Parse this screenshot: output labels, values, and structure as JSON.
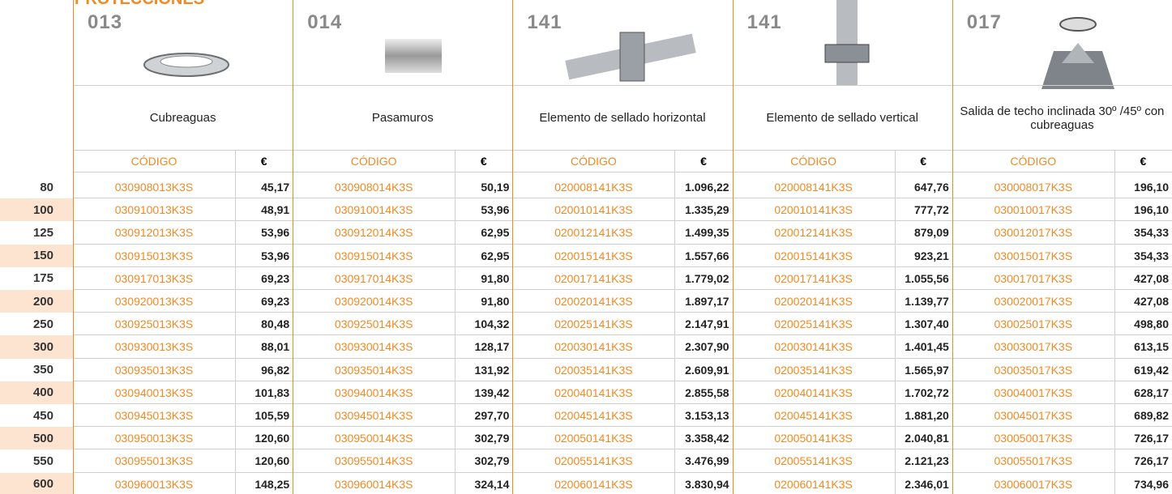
{
  "header": {
    "title": "PROTECCIONES"
  },
  "table": {
    "code_header": "CÓDIGO",
    "price_header": "€",
    "diameters": [
      "80",
      "100",
      "125",
      "150",
      "175",
      "200",
      "250",
      "300",
      "350",
      "400",
      "450",
      "500",
      "550",
      "600"
    ],
    "products": [
      {
        "number": "013",
        "name": "Cubreaguas",
        "codes": [
          "030908013K3S",
          "030910013K3S",
          "030912013K3S",
          "030915013K3S",
          "030917013K3S",
          "030920013K3S",
          "030925013K3S",
          "030930013K3S",
          "030935013K3S",
          "030940013K3S",
          "030945013K3S",
          "030950013K3S",
          "030955013K3S",
          "030960013K3S"
        ],
        "prices": [
          "45,17",
          "48,91",
          "53,96",
          "53,96",
          "69,23",
          "69,23",
          "80,48",
          "88,01",
          "96,82",
          "101,83",
          "105,59",
          "120,60",
          "120,60",
          "148,25"
        ]
      },
      {
        "number": "014",
        "name": "Pasamuros",
        "codes": [
          "030908014K3S",
          "030910014K3S",
          "030912014K3S",
          "030915014K3S",
          "030917014K3S",
          "030920014K3S",
          "030925014K3S",
          "030930014K3S",
          "030935014K3S",
          "030940014K3S",
          "030945014K3S",
          "030950014K3S",
          "030955014K3S",
          "030960014K3S"
        ],
        "prices": [
          "50,19",
          "53,96",
          "62,95",
          "62,95",
          "91,80",
          "91,80",
          "104,32",
          "128,17",
          "131,92",
          "139,42",
          "297,70",
          "302,79",
          "302,79",
          "324,14"
        ]
      },
      {
        "number": "141",
        "name": "Elemento de sellado horizontal",
        "codes": [
          "020008141K3S",
          "020010141K3S",
          "020012141K3S",
          "020015141K3S",
          "020017141K3S",
          "020020141K3S",
          "020025141K3S",
          "020030141K3S",
          "020035141K3S",
          "020040141K3S",
          "020045141K3S",
          "020050141K3S",
          "020055141K3S",
          "020060141K3S"
        ],
        "prices": [
          "1.096,22",
          "1.335,29",
          "1.499,35",
          "1.557,66",
          "1.779,02",
          "1.897,17",
          "2.147,91",
          "2.307,90",
          "2.609,91",
          "2.855,58",
          "3.153,13",
          "3.358,42",
          "3.476,99",
          "3.830,94"
        ]
      },
      {
        "number": "141",
        "name": "Elemento de sellado vertical",
        "codes": [
          "020008141K3S",
          "020010141K3S",
          "020012141K3S",
          "020015141K3S",
          "020017141K3S",
          "020020141K3S",
          "020025141K3S",
          "020030141K3S",
          "020035141K3S",
          "020040141K3S",
          "020045141K3S",
          "020050141K3S",
          "020055141K3S",
          "020060141K3S"
        ],
        "prices": [
          "647,76",
          "777,72",
          "879,09",
          "923,21",
          "1.055,56",
          "1.139,77",
          "1.307,40",
          "1.401,45",
          "1.565,97",
          "1.702,72",
          "1.881,20",
          "2.040,81",
          "2.121,23",
          "2.346,01"
        ]
      },
      {
        "number": "017",
        "name": "Salida de techo inclinada 30º /45º con cubreaguas",
        "codes": [
          "030008017K3S",
          "030010017K3S",
          "030012017K3S",
          "030015017K3S",
          "030017017K3S",
          "030020017K3S",
          "030025017K3S",
          "030030017K3S",
          "030035017K3S",
          "030040017K3S",
          "030045017K3S",
          "030050017K3S",
          "030055017K3S",
          "030060017K3S"
        ],
        "prices": [
          "196,10",
          "196,10",
          "354,33",
          "354,33",
          "427,08",
          "427,08",
          "498,80",
          "613,15",
          "619,42",
          "628,17",
          "689,82",
          "726,17",
          "726,17",
          "734,96"
        ]
      }
    ]
  }
}
